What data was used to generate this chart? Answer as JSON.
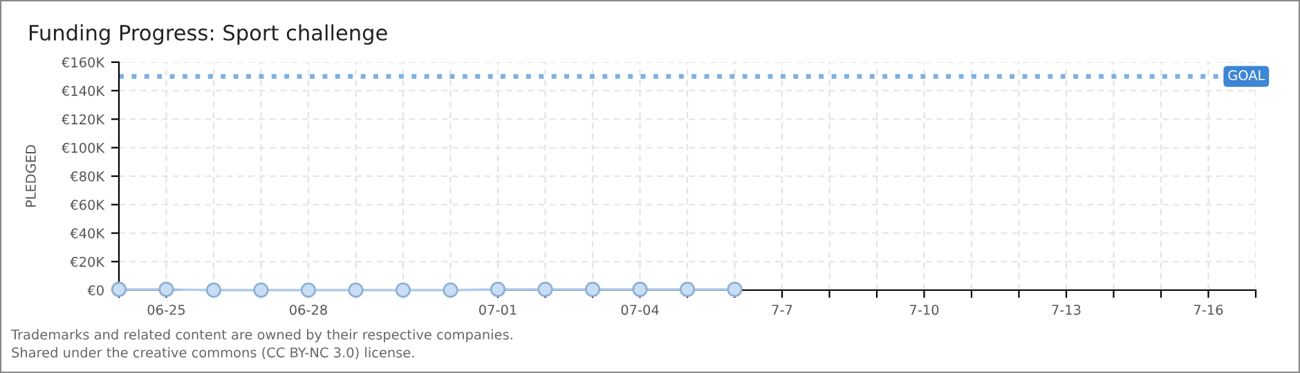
{
  "chart_data": {
    "type": "line",
    "title": "Funding Progress: Sport challenge",
    "ylabel": "PLEDGED",
    "categories": [
      null,
      "06-25",
      null,
      null,
      "06-28",
      null,
      null,
      null,
      "07-01",
      null,
      null,
      "07-04",
      null,
      null,
      "7-7",
      null,
      null,
      "7-10",
      null,
      null,
      "7-13",
      null,
      null,
      "7-16",
      null
    ],
    "series": [
      {
        "color": "#aecbeb",
        "values": [
          500,
          500,
          0,
          0,
          0,
          0,
          0,
          0,
          500,
          500,
          500,
          500,
          500,
          500,
          null,
          null,
          null,
          null,
          null,
          null,
          null,
          null,
          null,
          null,
          null
        ]
      }
    ],
    "ylim": [
      0,
      160000
    ],
    "yticks": [
      {
        "value": 0,
        "label": "€0"
      },
      {
        "value": 20000,
        "label": "€20K"
      },
      {
        "value": 40000,
        "label": "€40K"
      },
      {
        "value": 60000,
        "label": "€60K"
      },
      {
        "value": 80000,
        "label": "€80K"
      },
      {
        "value": 100000,
        "label": "€100K"
      },
      {
        "value": 120000,
        "label": "€120K"
      },
      {
        "value": 140000,
        "label": "€140K"
      },
      {
        "value": 160000,
        "label": "€160K"
      }
    ],
    "ref_lines": [
      {
        "axis": "y",
        "value": 150000,
        "label": "GOAL",
        "color": "#7fb0e0",
        "line_style": "dotted"
      }
    ],
    "grid": true,
    "marker": "circle",
    "line_style": "solid",
    "legend": false,
    "annotations": [
      "Trademarks and related content are owned by their respective companies.",
      "Shared under the creative commons (CC BY-NC 3.0) license."
    ]
  }
}
